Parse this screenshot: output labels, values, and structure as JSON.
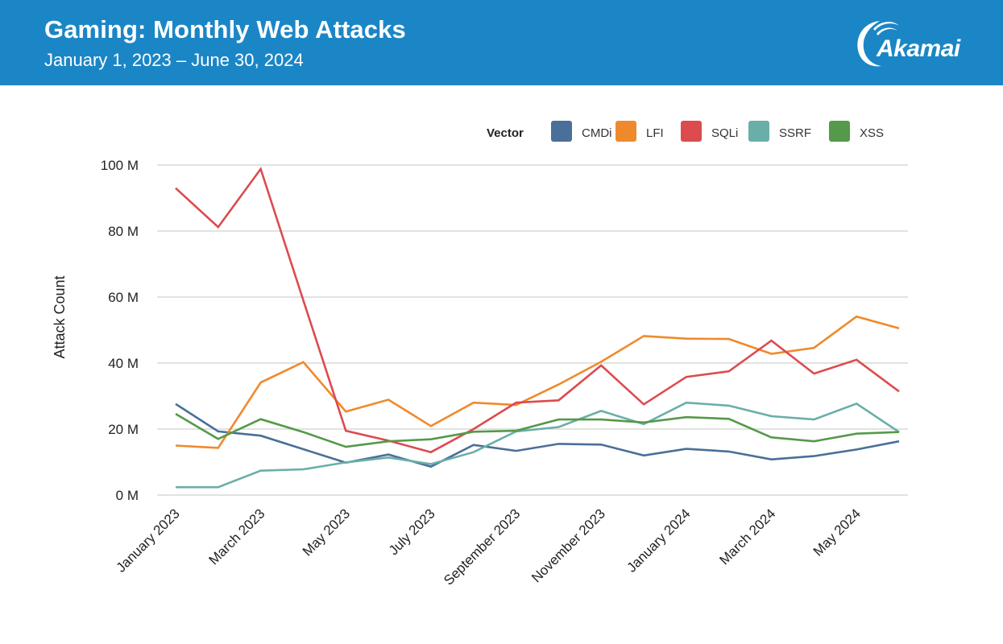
{
  "header": {
    "title": "Gaming: Monthly Web Attacks",
    "subtitle": "January 1, 2023 – June 30, 2024",
    "logo_text": "Akamai",
    "background_color": "#1b86c6"
  },
  "chart_data": {
    "type": "line",
    "title": "Gaming: Monthly Web Attacks",
    "subtitle": "January 1, 2023 – June 30, 2024",
    "xlabel": "",
    "ylabel": "Attack Count",
    "ylim": [
      0,
      100
    ],
    "y_unit": "M",
    "y_ticks": [
      0,
      20,
      40,
      60,
      80,
      100
    ],
    "y_tick_labels": [
      "0 M",
      "20 M",
      "40 M",
      "60 M",
      "80 M",
      "100 M"
    ],
    "grid": true,
    "legend_title": "Vector",
    "legend_position": "top-right",
    "x": [
      "Jan 2023",
      "Feb 2023",
      "Mar 2023",
      "Apr 2023",
      "May 2023",
      "Jun 2023",
      "Jul 2023",
      "Aug 2023",
      "Sep 2023",
      "Oct 2023",
      "Nov 2023",
      "Dec 2023",
      "Jan 2024",
      "Feb 2024",
      "Mar 2024",
      "Apr 2024",
      "May 2024",
      "Jun 2024"
    ],
    "x_tick_labels": [
      {
        "index": 0,
        "label": "January 2023"
      },
      {
        "index": 2,
        "label": "March 2023"
      },
      {
        "index": 4,
        "label": "May 2023"
      },
      {
        "index": 6,
        "label": "July 2023"
      },
      {
        "index": 8,
        "label": "September 2023"
      },
      {
        "index": 10,
        "label": "November 2023"
      },
      {
        "index": 12,
        "label": "January 2024"
      },
      {
        "index": 14,
        "label": "March 2024"
      },
      {
        "index": 16,
        "label": "May 2024"
      }
    ],
    "series": [
      {
        "name": "CMDi",
        "color": "#4a6f98",
        "values": [
          27.6,
          19.3,
          18.0,
          13.9,
          9.8,
          12.3,
          8.6,
          15.2,
          13.4,
          15.5,
          15.3,
          12.0,
          14.0,
          13.2,
          10.8,
          11.8,
          13.8,
          16.3
        ]
      },
      {
        "name": "LFI",
        "color": "#ef8a2c",
        "values": [
          15.0,
          14.3,
          34.1,
          40.3,
          25.3,
          28.9,
          20.9,
          28.0,
          27.3,
          33.5,
          40.4,
          48.2,
          47.4,
          47.3,
          42.8,
          44.6,
          54.1,
          50.5
        ]
      },
      {
        "name": "SQLi",
        "color": "#dc4b4e",
        "values": [
          93.0,
          81.2,
          98.8,
          59.0,
          19.5,
          16.5,
          13.0,
          20.0,
          28.0,
          28.7,
          39.3,
          27.5,
          35.8,
          37.5,
          46.8,
          36.8,
          41.0,
          31.4
        ]
      },
      {
        "name": "SSRF",
        "color": "#6aaea9",
        "values": [
          2.4,
          2.4,
          7.4,
          7.8,
          9.9,
          11.4,
          9.4,
          13.0,
          19.3,
          20.6,
          25.5,
          21.5,
          28.0,
          27.1,
          23.9,
          22.9,
          27.7,
          19.1
        ]
      },
      {
        "name": "XSS",
        "color": "#55994a",
        "values": [
          24.6,
          17.0,
          23.0,
          19.1,
          14.6,
          16.3,
          16.9,
          19.2,
          19.5,
          22.9,
          22.9,
          22.0,
          23.6,
          23.1,
          17.5,
          16.3,
          18.6,
          19.1
        ]
      }
    ]
  }
}
